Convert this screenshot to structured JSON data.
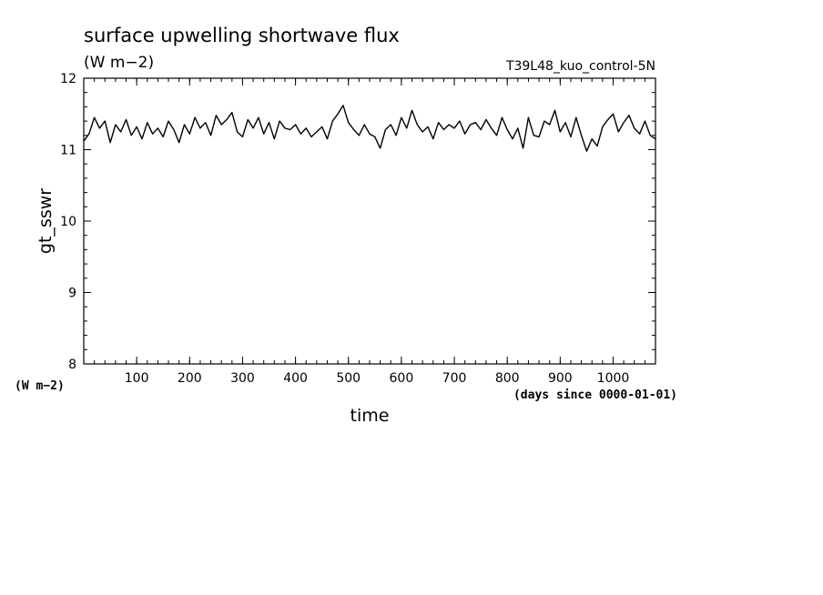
{
  "chart_data": {
    "type": "line",
    "title": "surface upwelling shortwave flux",
    "units_label": "(W m−2)",
    "experiment": "T39L48_kuo_control-5N",
    "ylabel": "gt_sswr",
    "yunits": "(W m−2)",
    "xlabel": "time",
    "xunits": "(days since 0000-01-01)",
    "xlim": [
      0,
      1080
    ],
    "ylim": [
      8,
      12
    ],
    "xticks": [
      "100",
      "200",
      "300",
      "400",
      "500",
      "600",
      "700",
      "800",
      "900",
      "1000"
    ],
    "yticks": [
      "8",
      "9",
      "10",
      "11",
      "12"
    ],
    "grid": false,
    "series": [
      {
        "x": [
          0,
          10,
          20,
          30,
          40,
          50,
          60,
          70,
          80,
          90,
          100,
          110,
          120,
          130,
          140,
          150,
          160,
          170,
          180,
          190,
          200,
          210,
          220,
          230,
          240,
          250,
          260,
          270,
          280,
          290,
          300,
          310,
          320,
          330,
          340,
          350,
          360,
          370,
          380,
          390,
          400,
          410,
          420,
          430,
          440,
          450,
          460,
          470,
          480,
          490,
          500,
          510,
          520,
          530,
          540,
          550,
          560,
          570,
          580,
          590,
          600,
          610,
          620,
          630,
          640,
          650,
          660,
          670,
          680,
          690,
          700,
          710,
          720,
          730,
          740,
          750,
          760,
          770,
          780,
          790,
          800,
          810,
          820,
          830,
          840,
          850,
          860,
          870,
          880,
          890,
          900,
          910,
          920,
          930,
          940,
          950,
          960,
          970,
          980,
          990,
          1000,
          1010,
          1020,
          1030,
          1040,
          1050,
          1060,
          1070,
          1080
        ],
        "values": [
          11.12,
          11.22,
          11.45,
          11.3,
          11.4,
          11.1,
          11.35,
          11.25,
          11.42,
          11.2,
          11.32,
          11.15,
          11.38,
          11.22,
          11.3,
          11.18,
          11.4,
          11.28,
          11.1,
          11.35,
          11.22,
          11.45,
          11.3,
          11.38,
          11.2,
          11.48,
          11.35,
          11.42,
          11.52,
          11.25,
          11.18,
          11.42,
          11.3,
          11.45,
          11.22,
          11.38,
          11.15,
          11.4,
          11.3,
          11.28,
          11.35,
          11.22,
          11.3,
          11.18,
          11.25,
          11.32,
          11.15,
          11.4,
          11.5,
          11.62,
          11.38,
          11.28,
          11.2,
          11.35,
          11.22,
          11.18,
          11.02,
          11.28,
          11.35,
          11.2,
          11.45,
          11.3,
          11.55,
          11.35,
          11.25,
          11.32,
          11.15,
          11.38,
          11.28,
          11.35,
          11.3,
          11.4,
          11.22,
          11.35,
          11.38,
          11.28,
          11.42,
          11.3,
          11.2,
          11.45,
          11.28,
          11.15,
          11.3,
          11.02,
          11.45,
          11.2,
          11.18,
          11.4,
          11.35,
          11.55,
          11.25,
          11.38,
          11.18,
          11.45,
          11.2,
          10.98,
          11.15,
          11.05,
          11.32,
          11.42,
          11.5,
          11.25,
          11.38,
          11.48,
          11.3,
          11.22,
          11.4,
          11.2,
          11.15
        ]
      }
    ]
  }
}
